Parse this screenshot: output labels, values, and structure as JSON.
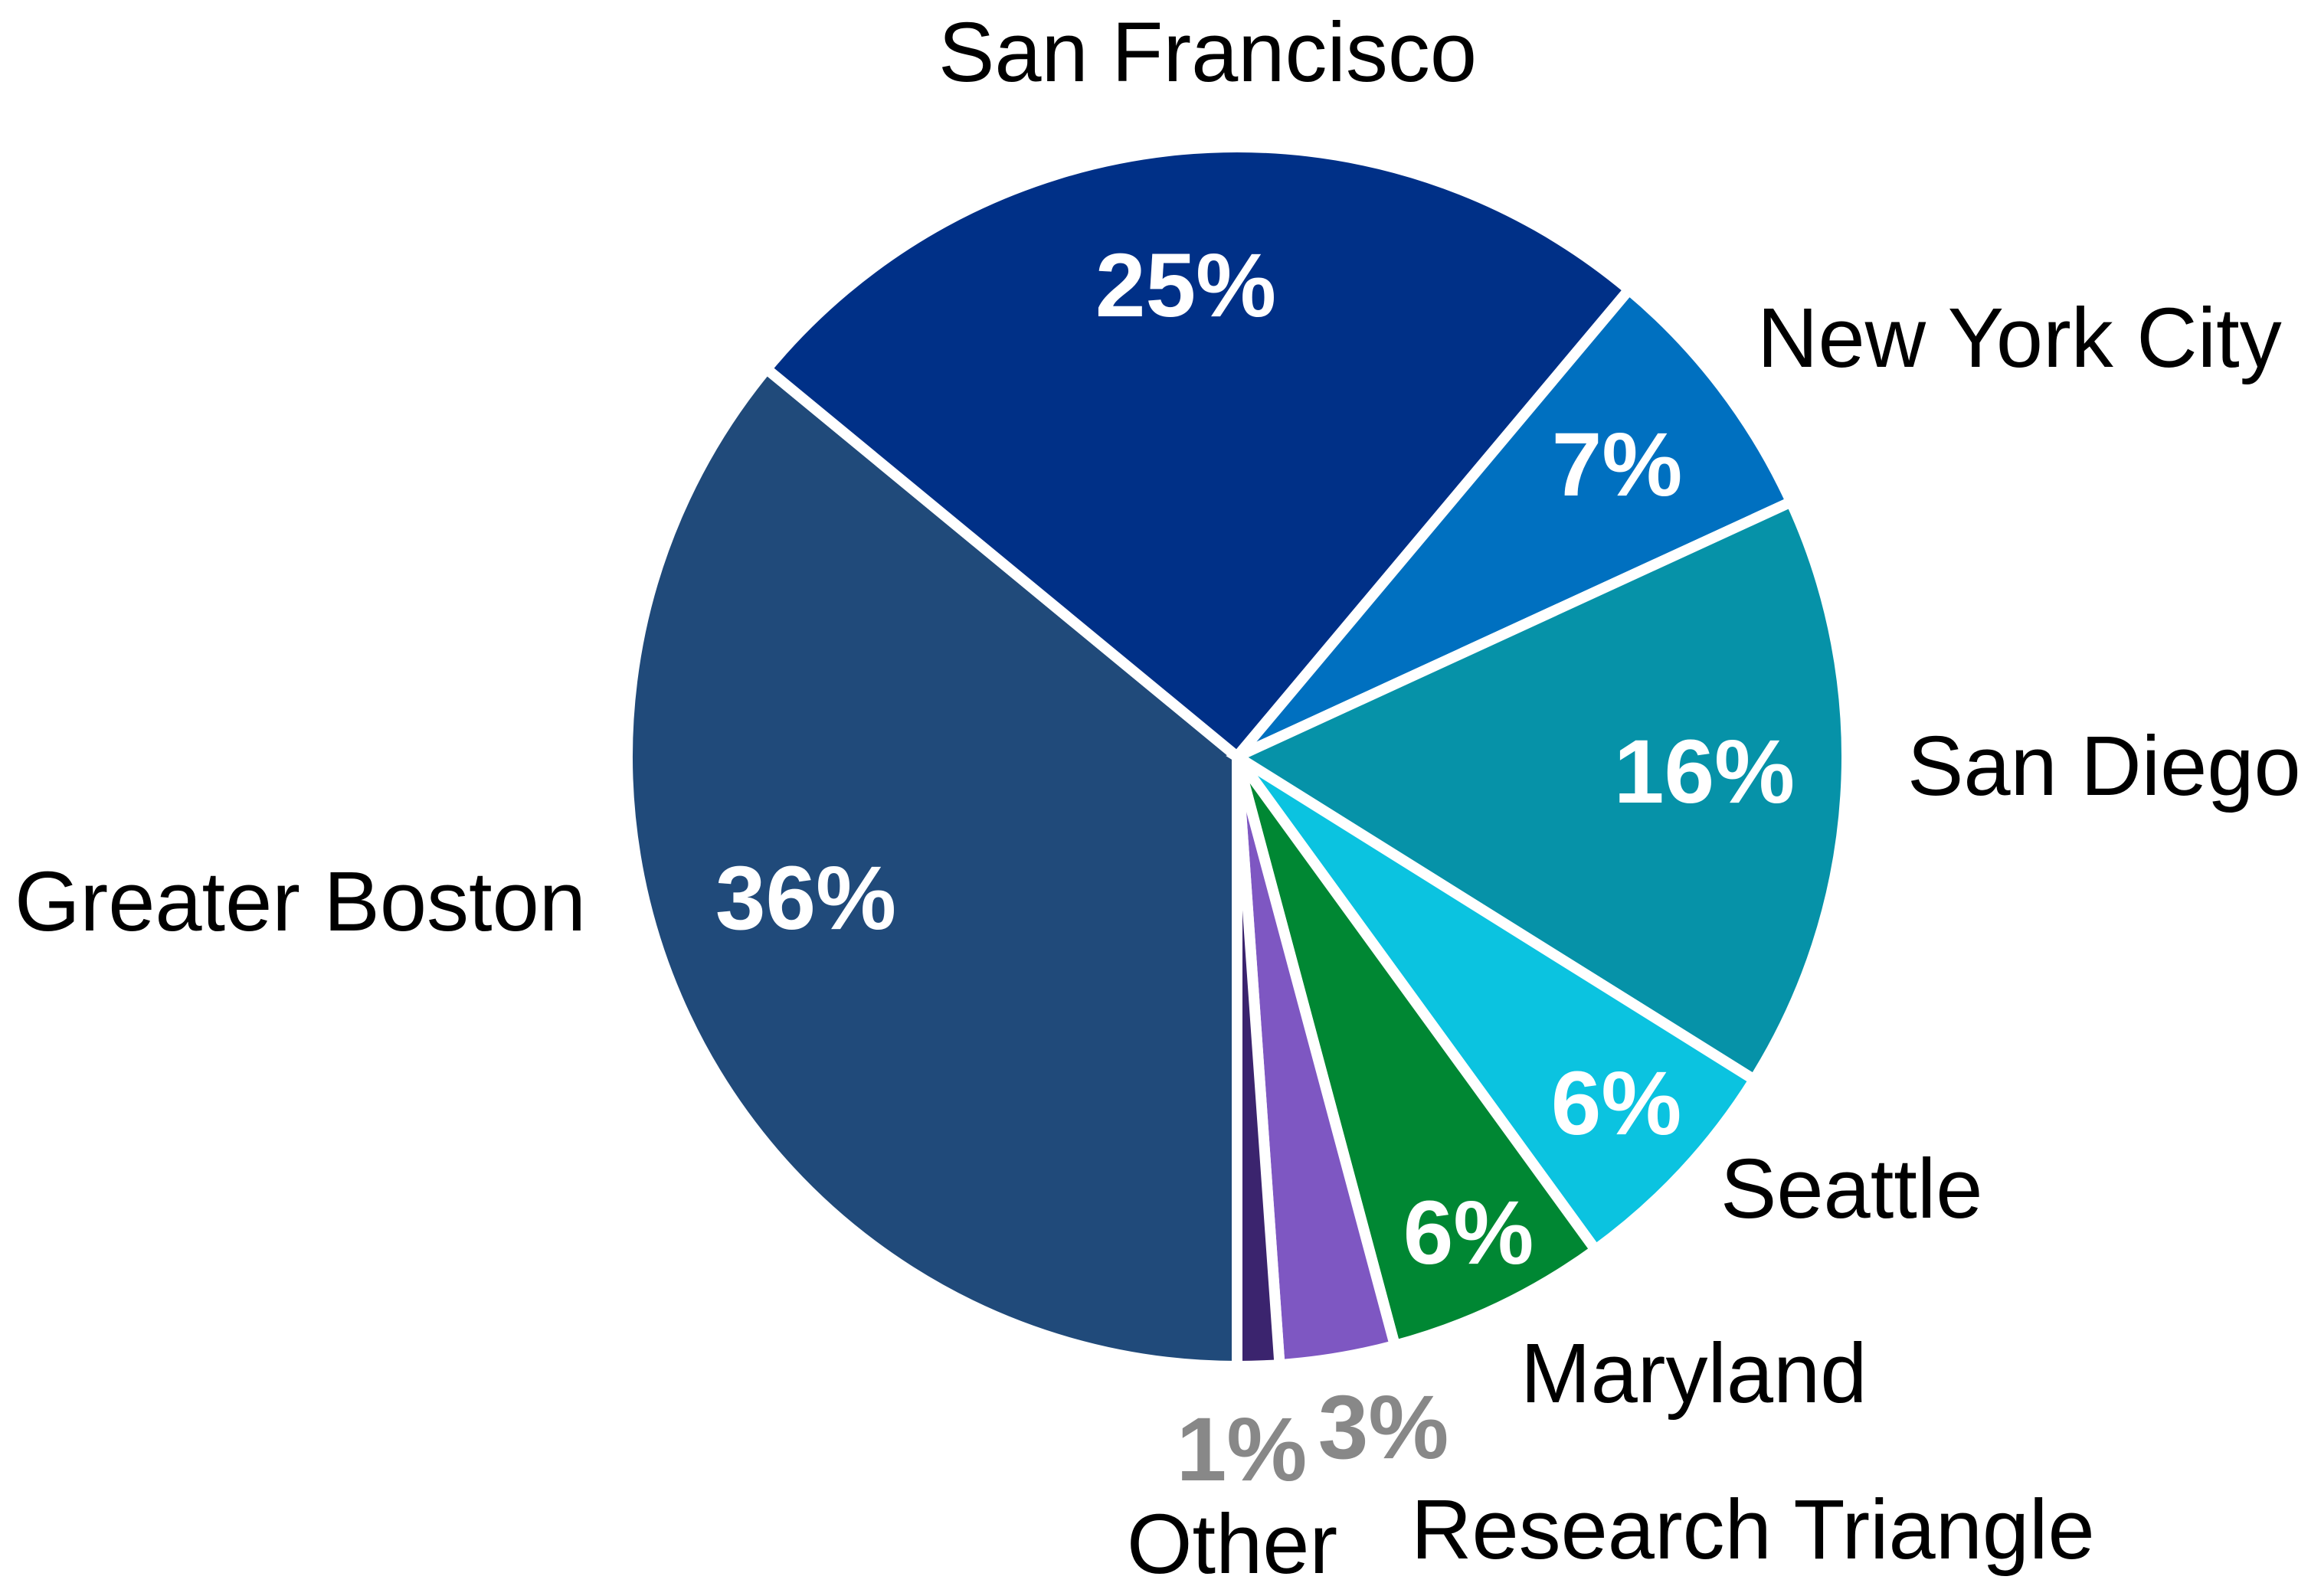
{
  "chart_data": {
    "type": "pie",
    "title": "",
    "start_angle_deg": 180,
    "direction": "clockwise-from-bottom",
    "center": [
      1615,
      988
    ],
    "radius": 796,
    "separator_color": "#FFFFFF",
    "slices": [
      {
        "label": "Greater Boston",
        "value": 36,
        "pct_label": "36%",
        "color": "#204A7A",
        "pct_color": "#FFFFFF",
        "start_deg": 180,
        "end_deg": 309.5,
        "label_pos": [
          19,
          1215
        ],
        "label_anchor": "start",
        "pct_pos": [
          1052,
          1213
        ]
      },
      {
        "label": "San Francisco",
        "value": 25,
        "pct_label": "25%",
        "color": "#003087",
        "pct_color": "#FFFFFF",
        "start_deg": 309.5,
        "end_deg": 400,
        "label_pos": [
          1225,
          106
        ],
        "label_anchor": "start",
        "pct_pos": [
          1548,
          413
        ]
      },
      {
        "label": "New York City",
        "value": 7,
        "pct_label": "7%",
        "color": "#0070C0",
        "pct_color": "#FFFFFF",
        "start_deg": 400,
        "end_deg": 425.3,
        "label_pos": [
          2294,
          479
        ],
        "label_anchor": "start",
        "pct_pos": [
          2111,
          647
        ]
      },
      {
        "label": "San Diego",
        "value": 16,
        "pct_label": "16%",
        "color": "#0692A8",
        "pct_color": "#FFFFFF",
        "start_deg": 425.3,
        "end_deg": 482,
        "label_pos": [
          2490,
          1038
        ],
        "label_anchor": "start",
        "pct_pos": [
          2225,
          1048
        ]
      },
      {
        "label": "Seattle",
        "value": 6,
        "pct_label": "6%",
        "color": "#0BC3E0",
        "pct_color": "#FFFFFF",
        "start_deg": 482,
        "end_deg": 504,
        "label_pos": [
          2246,
          1590
        ],
        "label_anchor": "start",
        "pct_pos": [
          2110,
          1481
        ]
      },
      {
        "label": "Maryland",
        "value": 6,
        "pct_label": "6%",
        "color": "#008733",
        "pct_color": "#FFFFFF",
        "start_deg": 504,
        "end_deg": 525,
        "label_pos": [
          1985,
          1831
        ],
        "label_anchor": "start",
        "pct_pos": [
          1917,
          1650
        ]
      },
      {
        "label": "Research Triangle",
        "value": 3,
        "pct_label": "3%",
        "color": "#7E57C2",
        "pct_color": "#888888",
        "start_deg": 525,
        "end_deg": 536,
        "label_pos": [
          1842,
          2035
        ],
        "label_anchor": "start",
        "pct_pos": [
          1806,
          1904
        ]
      },
      {
        "label": "Other",
        "value": 1,
        "pct_label": "1%",
        "color": "#3B246E",
        "pct_color": "#888888",
        "start_deg": 536,
        "end_deg": 540,
        "label_pos": [
          1471,
          2054
        ],
        "label_anchor": "start",
        "pct_pos": [
          1621,
          1933
        ]
      }
    ],
    "legend": null,
    "grid": false
  }
}
